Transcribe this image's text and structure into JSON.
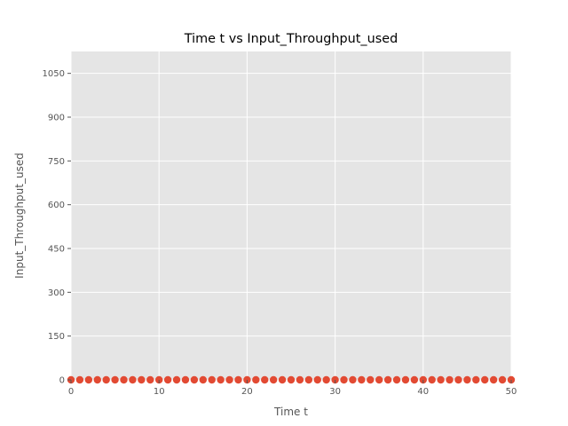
{
  "chart_data": {
    "type": "scatter",
    "title": "Time t vs Input_Throughput_used",
    "xlabel": "Time t",
    "ylabel": "Input_Throughput_used",
    "xlim": [
      0,
      50
    ],
    "ylim": [
      0,
      1125
    ],
    "xticks": [
      0,
      10,
      20,
      30,
      40,
      50
    ],
    "yticks": [
      0,
      150,
      300,
      450,
      600,
      750,
      900,
      1050
    ],
    "grid": true,
    "colors": {
      "background": "#E5E5E5",
      "grid": "#FFFFFF",
      "marker": "#E24A33",
      "tick": "#555555"
    },
    "series": [
      {
        "x": [
          0,
          1,
          2,
          3,
          4,
          5,
          6,
          7,
          8,
          9,
          10,
          11,
          12,
          13,
          14,
          15,
          16,
          17,
          18,
          19,
          20,
          21,
          22,
          23,
          24,
          25,
          26,
          27,
          28,
          29,
          30,
          31,
          32,
          33,
          34,
          35,
          36,
          37,
          38,
          39,
          40,
          41,
          42,
          43,
          44,
          45,
          46,
          47,
          48,
          49,
          50
        ],
        "y": [
          0,
          0,
          0,
          0,
          0,
          0,
          0,
          0,
          0,
          0,
          0,
          0,
          0,
          0,
          0,
          0,
          0,
          0,
          0,
          0,
          0,
          0,
          0,
          0,
          0,
          0,
          0,
          0,
          0,
          0,
          0,
          0,
          0,
          0,
          0,
          0,
          0,
          0,
          0,
          0,
          0,
          0,
          0,
          0,
          0,
          0,
          0,
          0,
          0,
          0,
          0
        ]
      }
    ]
  }
}
